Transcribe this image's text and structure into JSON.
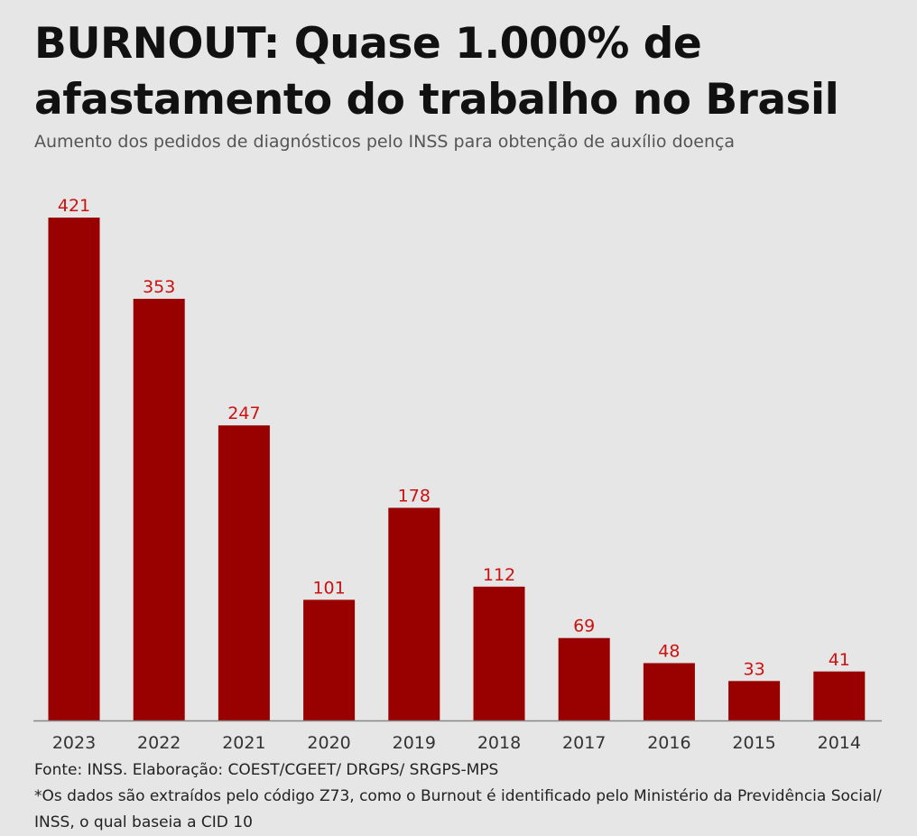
{
  "title": "BURNOUT:  Quase 1.000% de afastamento do trabalho no Brasil",
  "subtitle": "Aumento dos pedidos de diagnósticos pelo INSS para obtenção de auxílio doença",
  "source": "Fonte: INSS. Elaboração: COEST/CGEET/ DRGPS/ SRGPS-MPS",
  "note": "*Os dados são extraídos pelo código Z73, como o Burnout é identificado pelo Ministério da Previdência Social/ INSS, o qual baseia a CID 10",
  "colors": {
    "bar": "#990000",
    "value_label": "#cc1111",
    "axis": "#888888",
    "tick_label": "#333333"
  },
  "chart_data": {
    "type": "bar",
    "categories": [
      "2023",
      "2022",
      "2021",
      "2020",
      "2019",
      "2018",
      "2017",
      "2016",
      "2015",
      "2014"
    ],
    "values": [
      421,
      353,
      247,
      101,
      178,
      112,
      69,
      48,
      33,
      41
    ],
    "title": "BURNOUT:  Quase 1.000% de afastamento do trabalho no Brasil",
    "xlabel": "",
    "ylabel": "",
    "ylim": [
      0,
      421
    ],
    "grid": false,
    "data_labels": true
  }
}
